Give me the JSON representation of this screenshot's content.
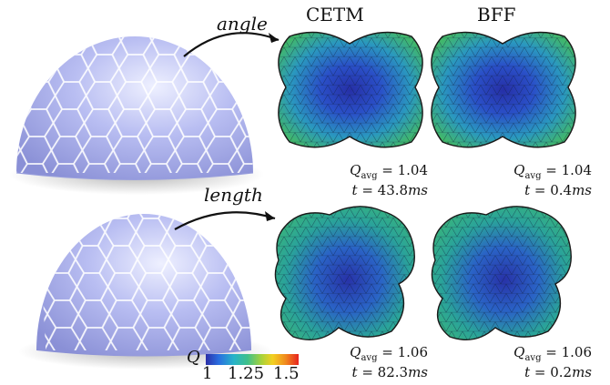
{
  "columns": [
    "CETM",
    "BFF"
  ],
  "rows": [
    {
      "label": "angle",
      "results": [
        {
          "method": "CETM",
          "q_symbol": "Q",
          "q_sub": "avg",
          "q_value": "1.04",
          "t_symbol": "t",
          "t_value": "43.8",
          "t_unit": "ms"
        },
        {
          "method": "BFF",
          "q_symbol": "Q",
          "q_sub": "avg",
          "q_value": "1.04",
          "t_symbol": "t",
          "t_value": "0.4",
          "t_unit": "ms"
        }
      ]
    },
    {
      "label": "length",
      "results": [
        {
          "method": "CETM",
          "q_symbol": "Q",
          "q_sub": "avg",
          "q_value": "1.06",
          "t_symbol": "t",
          "t_value": "82.3",
          "t_unit": "ms"
        },
        {
          "method": "BFF",
          "q_symbol": "Q",
          "q_sub": "avg",
          "q_value": "1.06",
          "t_symbol": "t",
          "t_value": "0.2",
          "t_unit": "ms"
        }
      ]
    }
  ],
  "colorbar": {
    "symbol": "Q",
    "ticks": [
      "1",
      "1.25",
      "1.5"
    ],
    "colors": [
      "#2c2fa8",
      "#2a6ee0",
      "#27b3c9",
      "#3fc08a",
      "#a7d23a",
      "#f3d021",
      "#f08a1e",
      "#e7231e"
    ]
  },
  "colors": {
    "hemisphere": "#b8bdf0",
    "mesh_dark": "#2a33a6",
    "mesh_mid": "#2a79c8",
    "mesh_light": "#37b17d",
    "outline": "#1a1a1a"
  }
}
